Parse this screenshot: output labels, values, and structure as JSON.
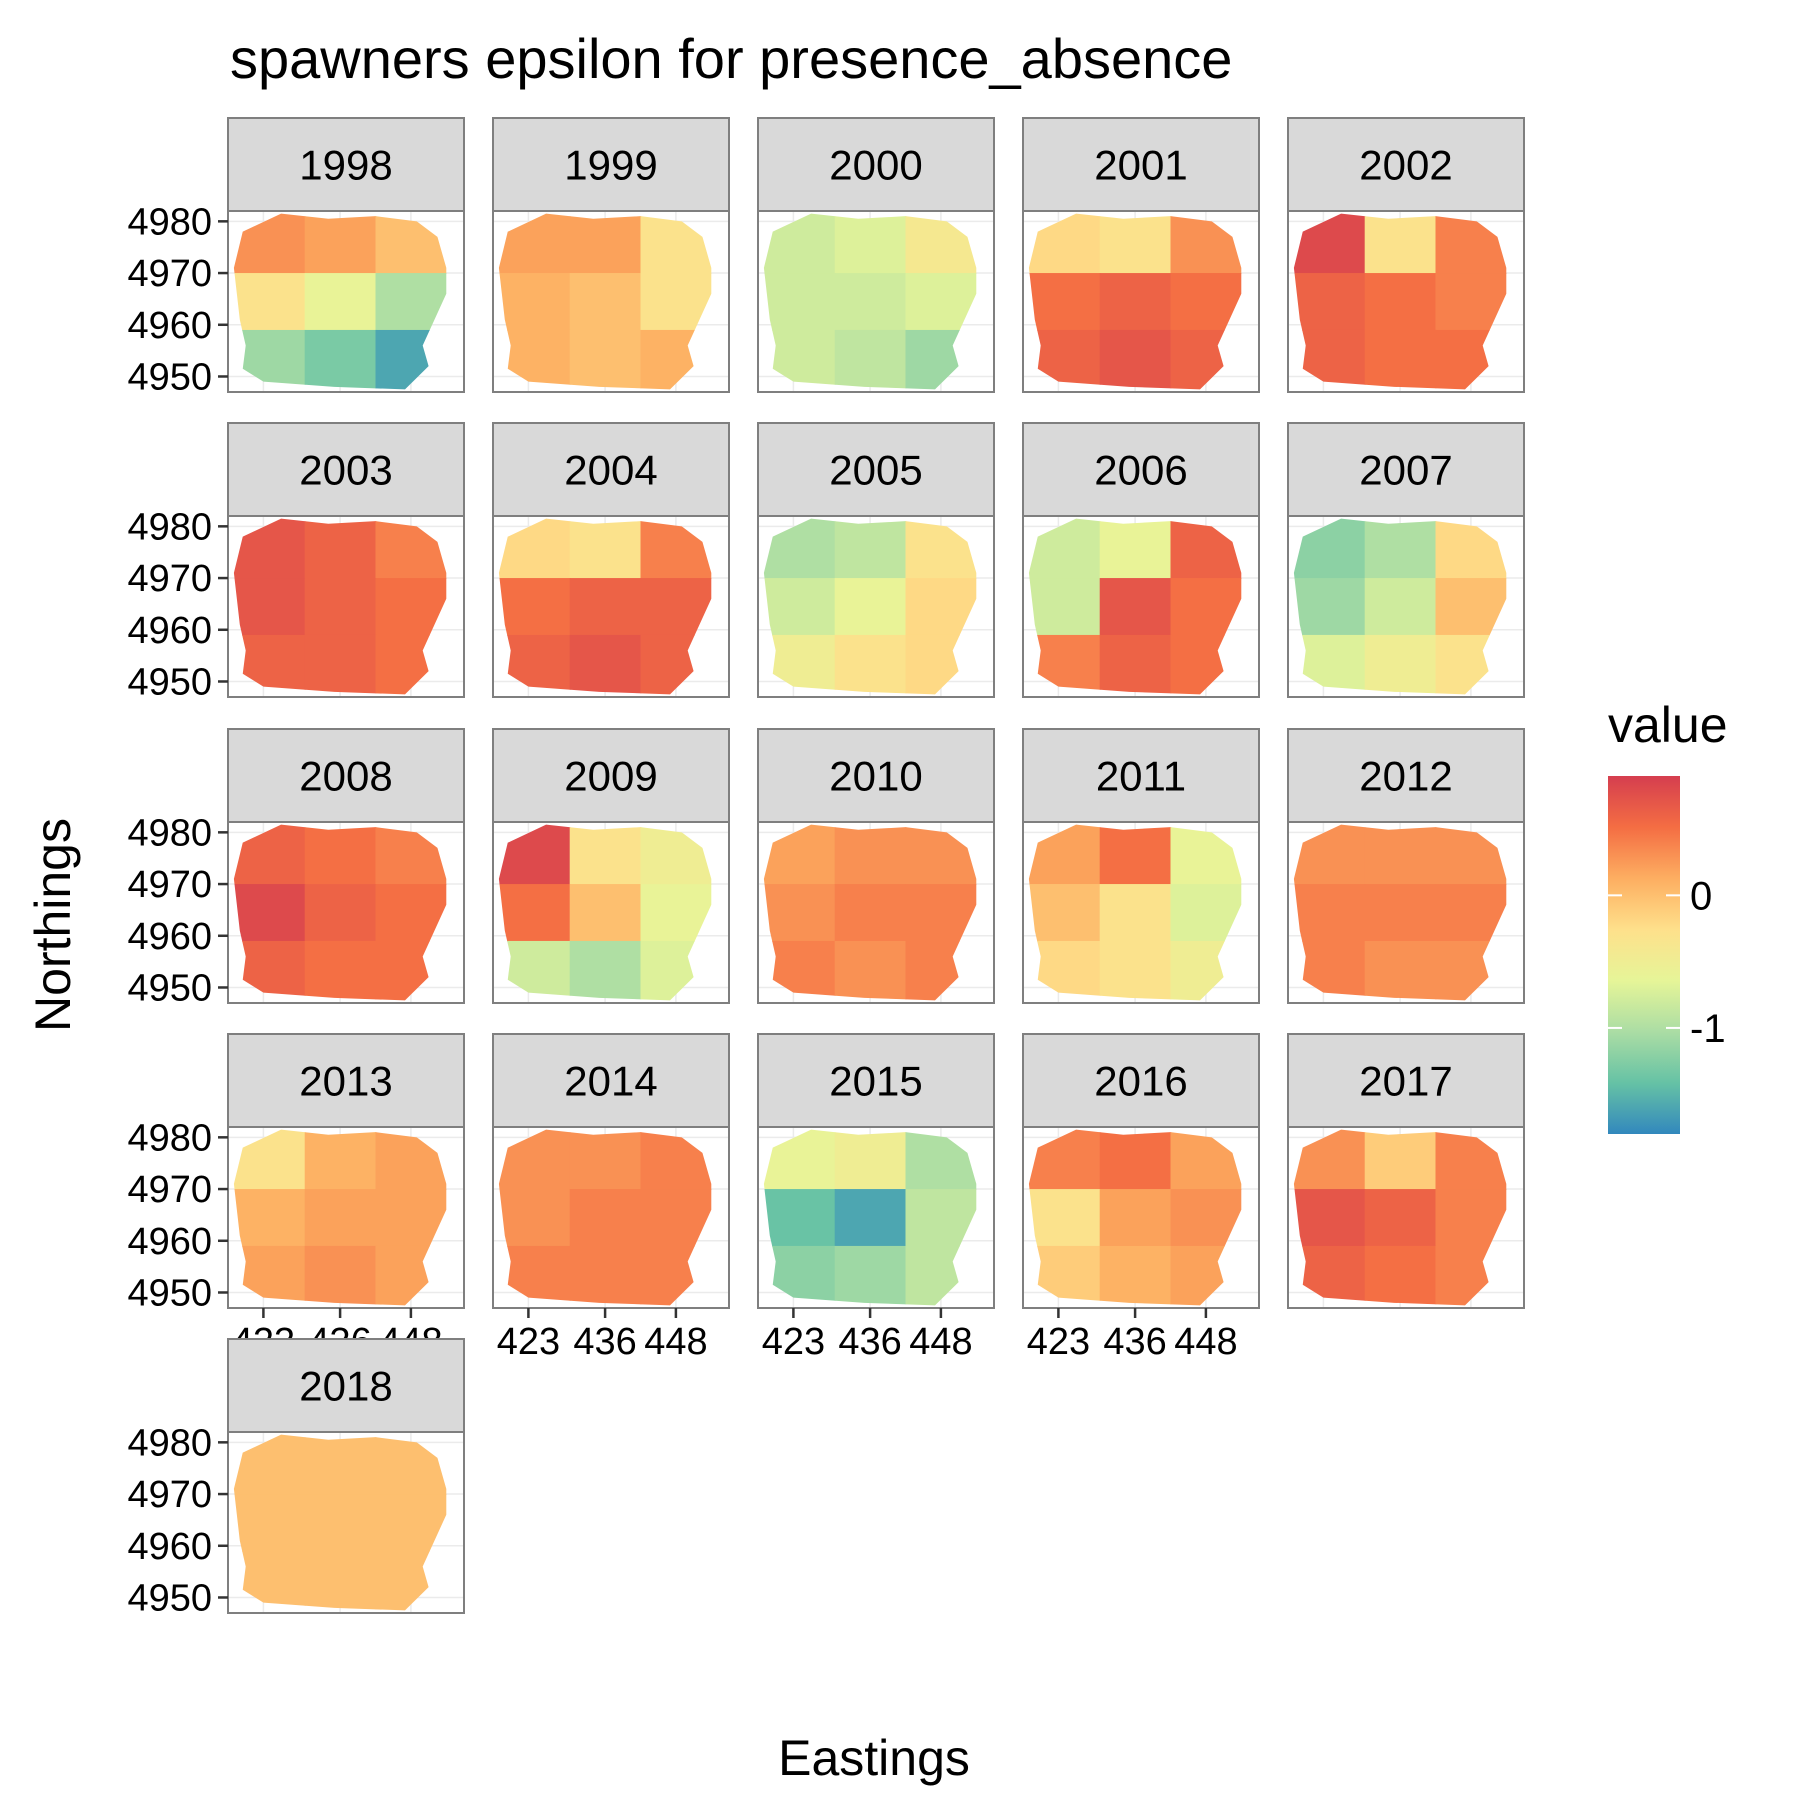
{
  "chart_data": {
    "type": "heatmap",
    "title": "spawners epsilon for presence_absence",
    "xlabel": "Eastings",
    "ylabel": "Northings",
    "legend": {
      "title": "value",
      "position": "right",
      "ticks": [
        {
          "value": 0,
          "label": "0"
        },
        {
          "value": -1,
          "label": "-1"
        }
      ],
      "range": [
        -1.8,
        0.9
      ],
      "palette": [
        "#3288bd",
        "#66c2a5",
        "#abdda4",
        "#e6f598",
        "#fee08b",
        "#fdae61",
        "#f46d43",
        "#d53e4f"
      ]
    },
    "x_ticks": [
      423,
      436,
      448
    ],
    "y_ticks": [
      4950,
      4960,
      4970,
      4980
    ],
    "xlim": [
      417,
      457
    ],
    "ylim": [
      4947,
      4982
    ],
    "grid": true,
    "panels": [
      {
        "year": "1998",
        "zone_values": [
          0.3,
          0.2,
          0.0,
          -0.3,
          -0.6,
          -1.0,
          -1.1,
          -1.3,
          -1.6
        ]
      },
      {
        "year": "1999",
        "zone_values": [
          0.2,
          0.2,
          -0.3,
          0.1,
          0.0,
          -0.3,
          0.1,
          0.0,
          0.1
        ]
      },
      {
        "year": "2000",
        "zone_values": [
          -0.8,
          -0.7,
          -0.4,
          -0.8,
          -0.8,
          -0.7,
          -0.8,
          -0.9,
          -1.1
        ]
      },
      {
        "year": "2001",
        "zone_values": [
          -0.2,
          -0.3,
          0.3,
          0.5,
          0.6,
          0.5,
          0.6,
          0.7,
          0.6
        ]
      },
      {
        "year": "2002",
        "zone_values": [
          0.8,
          -0.3,
          0.4,
          0.6,
          0.5,
          0.4,
          0.6,
          0.5,
          0.5
        ]
      },
      {
        "year": "2003",
        "zone_values": [
          0.7,
          0.6,
          0.4,
          0.7,
          0.6,
          0.5,
          0.6,
          0.6,
          0.5
        ]
      },
      {
        "year": "2004",
        "zone_values": [
          -0.2,
          -0.3,
          0.4,
          0.5,
          0.6,
          0.6,
          0.6,
          0.7,
          0.6
        ]
      },
      {
        "year": "2005",
        "zone_values": [
          -1.0,
          -0.9,
          -0.3,
          -0.8,
          -0.6,
          -0.2,
          -0.5,
          -0.3,
          -0.2
        ]
      },
      {
        "year": "2006",
        "zone_values": [
          -0.8,
          -0.6,
          0.6,
          -0.8,
          0.7,
          0.5,
          0.4,
          0.6,
          0.5
        ]
      },
      {
        "year": "2007",
        "zone_values": [
          -1.2,
          -1.0,
          -0.2,
          -1.1,
          -0.8,
          0.0,
          -0.7,
          -0.5,
          -0.3
        ]
      },
      {
        "year": "2008",
        "zone_values": [
          0.6,
          0.5,
          0.4,
          0.8,
          0.6,
          0.5,
          0.6,
          0.5,
          0.5
        ]
      },
      {
        "year": "2009",
        "zone_values": [
          0.8,
          -0.3,
          -0.5,
          0.5,
          0.0,
          -0.6,
          -0.8,
          -1.0,
          -0.7
        ]
      },
      {
        "year": "2010",
        "zone_values": [
          0.2,
          0.3,
          0.3,
          0.3,
          0.4,
          0.4,
          0.4,
          0.3,
          0.4
        ]
      },
      {
        "year": "2011",
        "zone_values": [
          0.2,
          0.5,
          -0.6,
          0.0,
          -0.3,
          -0.7,
          -0.2,
          -0.3,
          -0.5
        ]
      },
      {
        "year": "2012",
        "zone_values": [
          0.3,
          0.3,
          0.3,
          0.4,
          0.4,
          0.4,
          0.4,
          0.3,
          0.3
        ]
      },
      {
        "year": "2013",
        "zone_values": [
          -0.3,
          0.1,
          0.2,
          0.1,
          0.2,
          0.2,
          0.2,
          0.3,
          0.2
        ]
      },
      {
        "year": "2014",
        "zone_values": [
          0.3,
          0.3,
          0.4,
          0.3,
          0.4,
          0.4,
          0.4,
          0.4,
          0.4
        ]
      },
      {
        "year": "2015",
        "zone_values": [
          -0.6,
          -0.5,
          -1.0,
          -1.4,
          -1.6,
          -0.9,
          -1.2,
          -1.1,
          -0.9
        ]
      },
      {
        "year": "2016",
        "zone_values": [
          0.4,
          0.5,
          0.2,
          -0.3,
          0.2,
          0.3,
          -0.1,
          0.1,
          0.2
        ]
      },
      {
        "year": "2017",
        "zone_values": [
          0.3,
          -0.1,
          0.4,
          0.7,
          0.6,
          0.4,
          0.6,
          0.5,
          0.4
        ]
      },
      {
        "year": "2018",
        "zone_values": [
          0.0,
          0.0,
          0.0,
          0.0,
          0.0,
          0.0,
          0.0,
          0.0,
          0.0
        ]
      }
    ]
  }
}
